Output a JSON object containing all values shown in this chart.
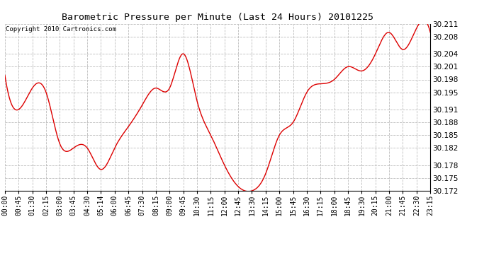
{
  "title": "Barometric Pressure per Minute (Last 24 Hours) 20101225",
  "copyright": "Copyright 2010 Cartronics.com",
  "line_color": "#dd0000",
  "bg_color": "#ffffff",
  "plot_bg_color": "#ffffff",
  "grid_color": "#bbbbbb",
  "ylim": [
    30.172,
    30.211
  ],
  "yticks": [
    30.172,
    30.175,
    30.178,
    30.182,
    30.185,
    30.188,
    30.191,
    30.195,
    30.198,
    30.201,
    30.204,
    30.208,
    30.211
  ],
  "xtick_labels": [
    "00:00",
    "00:45",
    "01:30",
    "02:15",
    "03:00",
    "03:45",
    "04:30",
    "05:14",
    "06:00",
    "06:45",
    "07:30",
    "08:15",
    "09:00",
    "09:45",
    "10:30",
    "11:15",
    "12:00",
    "12:45",
    "13:30",
    "14:15",
    "15:00",
    "15:45",
    "16:30",
    "17:15",
    "18:00",
    "18:45",
    "19:30",
    "20:15",
    "21:00",
    "21:45",
    "22:30",
    "23:15"
  ],
  "keypoints_x": [
    0,
    45,
    90,
    135,
    180,
    225,
    270,
    314,
    360,
    405,
    450,
    495,
    540,
    585,
    630,
    675,
    720,
    765,
    810,
    855,
    900,
    945,
    990,
    1035,
    1080,
    1125,
    1170,
    1215,
    1260,
    1305,
    1350,
    1395
  ],
  "keypoints_y": [
    30.199,
    30.191,
    30.196,
    30.195,
    30.183,
    30.182,
    30.182,
    30.177,
    30.182,
    30.187,
    30.192,
    30.196,
    30.196,
    30.204,
    30.193,
    30.185,
    30.178,
    30.173,
    30.172,
    30.176,
    30.185,
    30.188,
    30.195,
    30.197,
    30.198,
    30.201,
    30.2,
    30.204,
    30.209,
    30.205,
    30.21,
    30.209
  ]
}
